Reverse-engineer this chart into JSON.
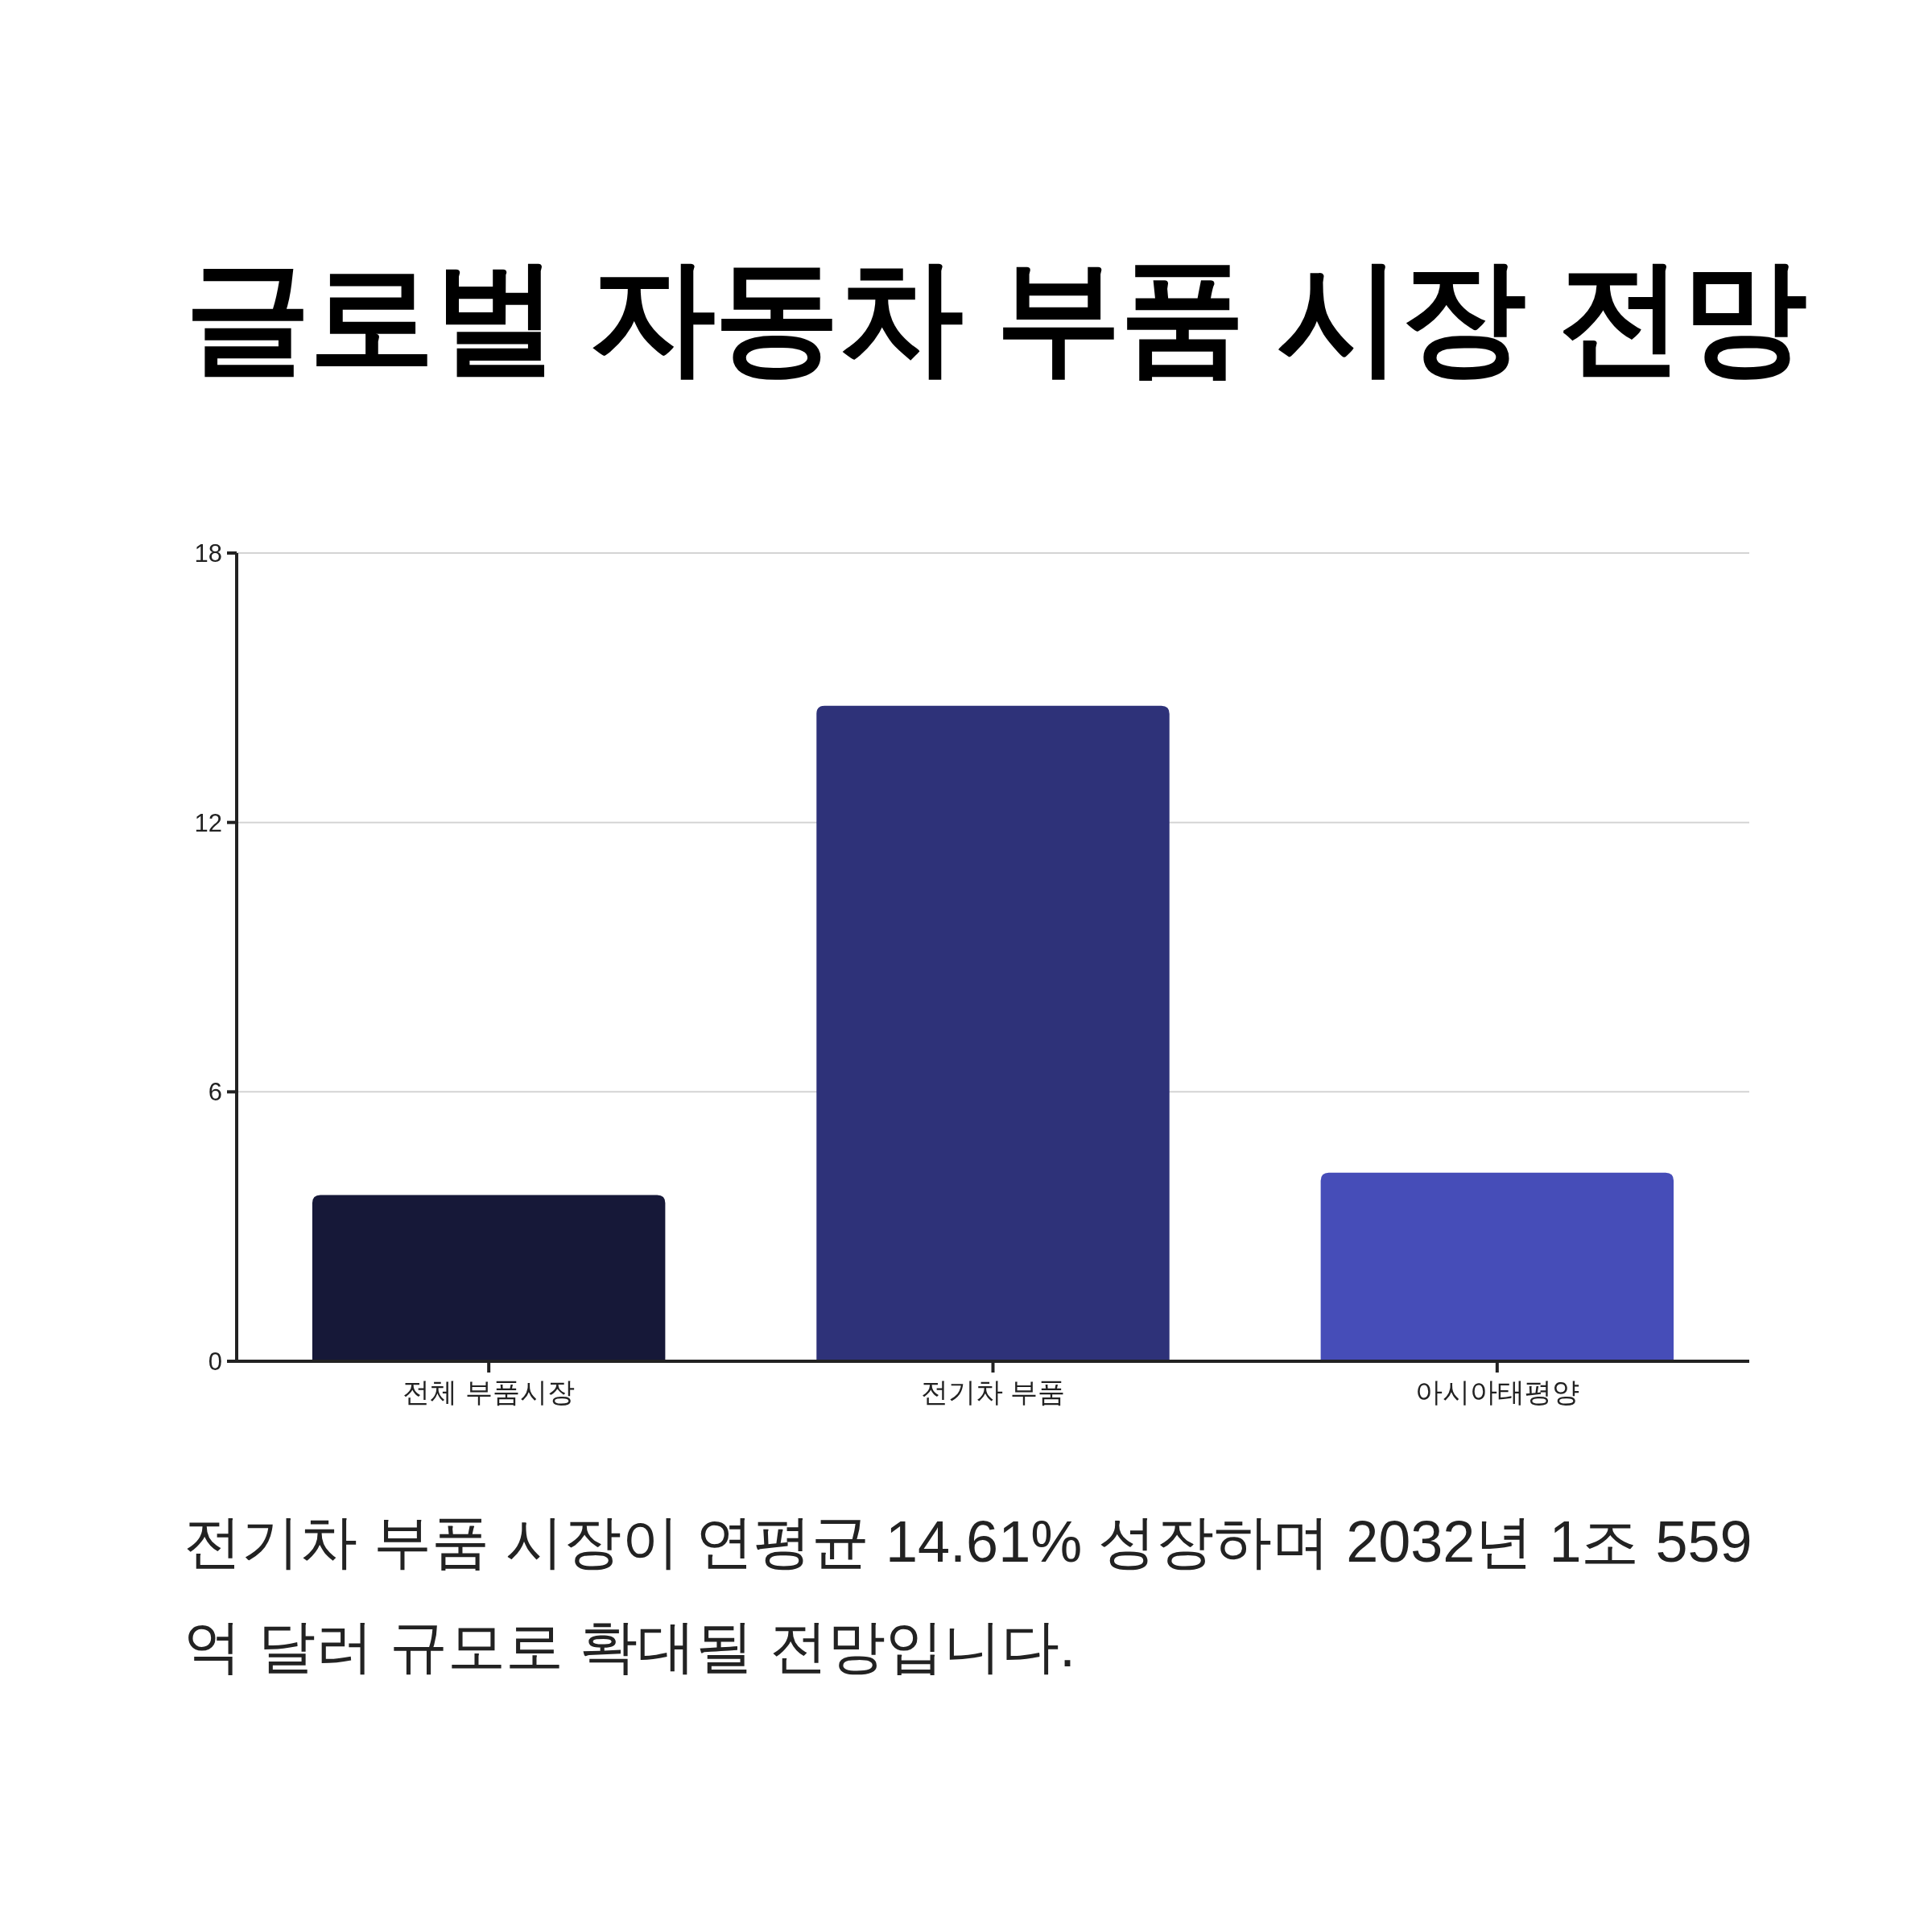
{
  "chart_data": {
    "type": "bar",
    "title": "글로벌 자동차 부품 시장 전망",
    "categories": [
      "전체 부품시장",
      "전기차 부품",
      "아시아태평양"
    ],
    "values": [
      3.7,
      14.6,
      4.2
    ],
    "colors": [
      "#161838",
      "#2e3279",
      "#464db8"
    ],
    "ylim": [
      0,
      18
    ],
    "yticks": [
      0,
      6,
      12,
      18
    ],
    "grid": "y",
    "annotations": [
      "전기차 부품 시장이 연평균 14.61% 성장하며 2032년 1조 559억 달러 규모로 확대될 전망입니다."
    ]
  }
}
